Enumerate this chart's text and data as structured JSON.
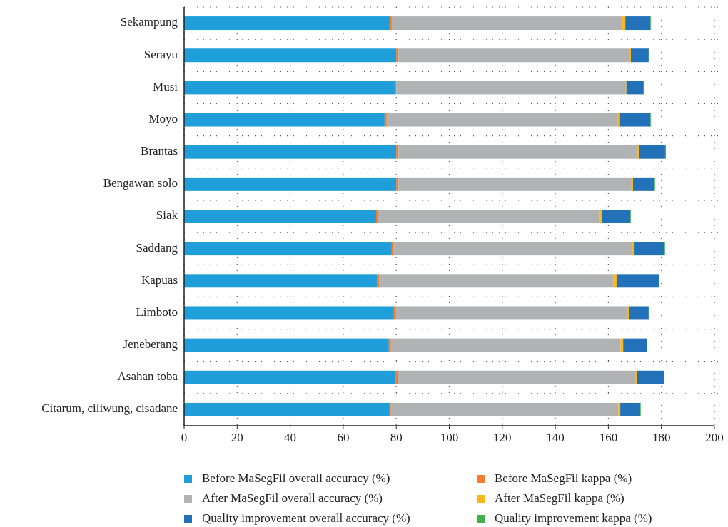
{
  "chart_data": {
    "type": "bar",
    "orientation": "horizontal",
    "stacked": true,
    "categories": [
      "Sekampung",
      "Serayu",
      "Musi",
      "Moyo",
      "Brantas",
      "Bengawan solo",
      "Siak",
      "Saddang",
      "Kapuas",
      "Limboto",
      "Jeneberang",
      "Asahan toba",
      "Citarum, ciliwung, cisadane"
    ],
    "series": [
      {
        "name": "Before MaSegFil overall accuracy (%)",
        "color": "#1f9ed9",
        "values": [
          77.5,
          80.0,
          79.4,
          75.6,
          80.0,
          80.0,
          72.4,
          78.3,
          72.7,
          79.1,
          77.2,
          79.7,
          77.5
        ]
      },
      {
        "name": "Before MaSegFil kappa (%)",
        "color": "#f47b2a",
        "values": [
          0.8,
          0.8,
          0.6,
          0.8,
          0.8,
          0.8,
          0.8,
          0.5,
          0.8,
          0.8,
          0.8,
          0.8,
          0.5
        ]
      },
      {
        "name": "After MaSegFil overall accuracy (%)",
        "color": "#b1b2b4",
        "values": [
          87.0,
          86.9,
          86.1,
          87.0,
          89.9,
          87.7,
          83.4,
          90.1,
          88.5,
          87.0,
          86.6,
          89.5,
          85.7
        ]
      },
      {
        "name": "After MaSegFil kappa (%)",
        "color": "#fbb61a",
        "values": [
          1.1,
          0.8,
          0.7,
          0.7,
          0.8,
          0.8,
          0.9,
          0.7,
          1.1,
          0.8,
          1.0,
          0.9,
          0.8
        ]
      },
      {
        "name": "Quality improvement overall accuracy (%)",
        "color": "#2271b9",
        "values": [
          9.5,
          6.7,
          6.5,
          11.8,
          9.9,
          8.1,
          10.8,
          11.6,
          15.9,
          7.5,
          8.9,
          10.0,
          7.5
        ]
      },
      {
        "name": "Quality improvement kappa (%)",
        "color": "#3cb14a",
        "values": [
          0.2,
          0.2,
          0.3,
          0.2,
          0.3,
          0.2,
          0.2,
          0.2,
          0.2,
          0.2,
          0.2,
          0.2,
          0.2
        ]
      }
    ],
    "xlim": [
      0,
      200
    ],
    "xticks": [
      0,
      20,
      40,
      60,
      80,
      100,
      120,
      140,
      160,
      180,
      200
    ],
    "grid": true,
    "line_style": "dotted",
    "legend": "bottom"
  }
}
